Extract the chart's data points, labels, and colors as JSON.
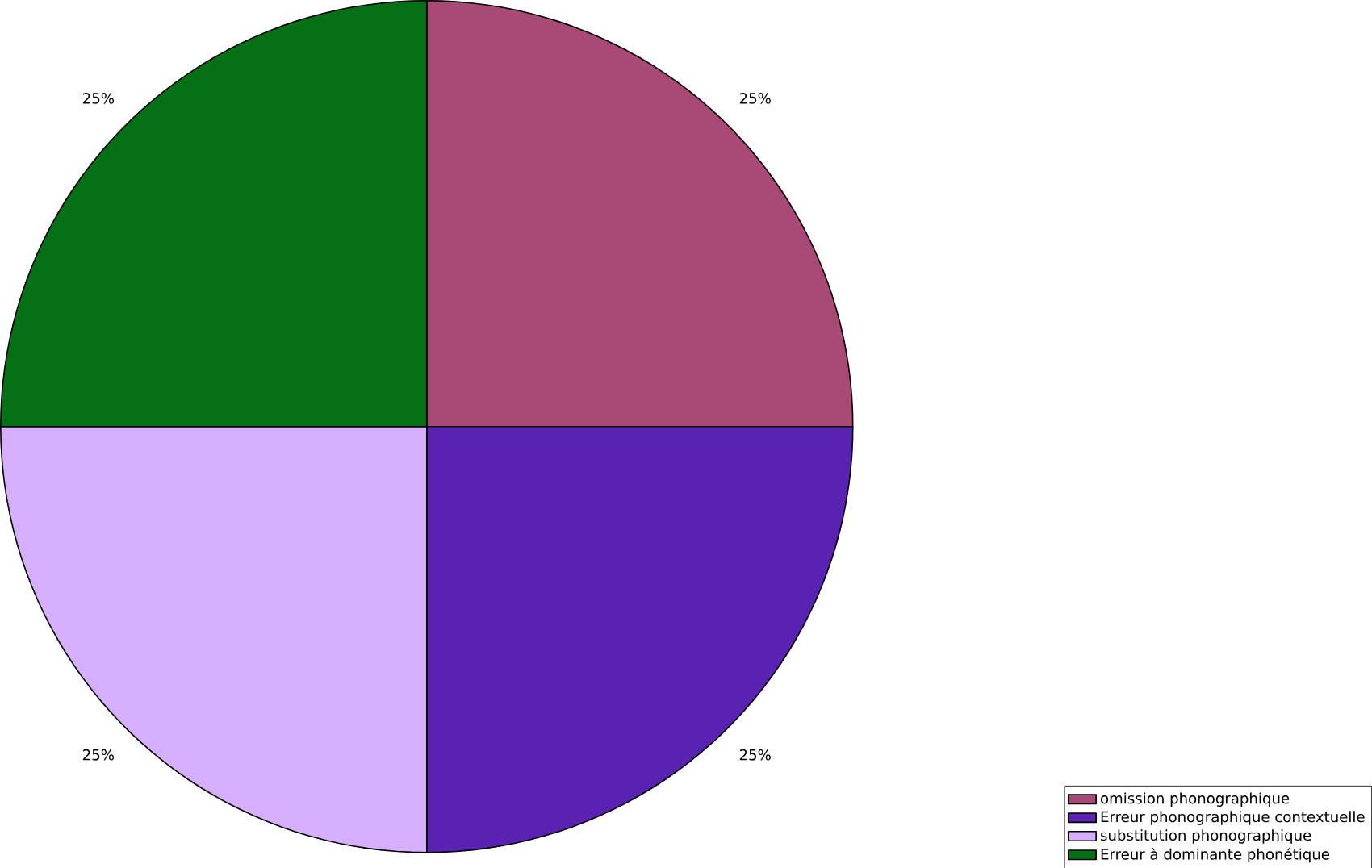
{
  "chart_data": {
    "type": "pie",
    "categories": [
      "omission phonographique",
      "Erreur phonographique contextuelle",
      "substitution phonographique",
      "Erreur à dominante phonétique"
    ],
    "values": [
      25,
      25,
      25,
      25
    ],
    "colors": [
      "#a84a75",
      "#5a22b0",
      "#d5aefc",
      "#067016"
    ],
    "value_labels": [
      "25%",
      "25%",
      "25%",
      "25%"
    ],
    "legend": "bottom right"
  }
}
